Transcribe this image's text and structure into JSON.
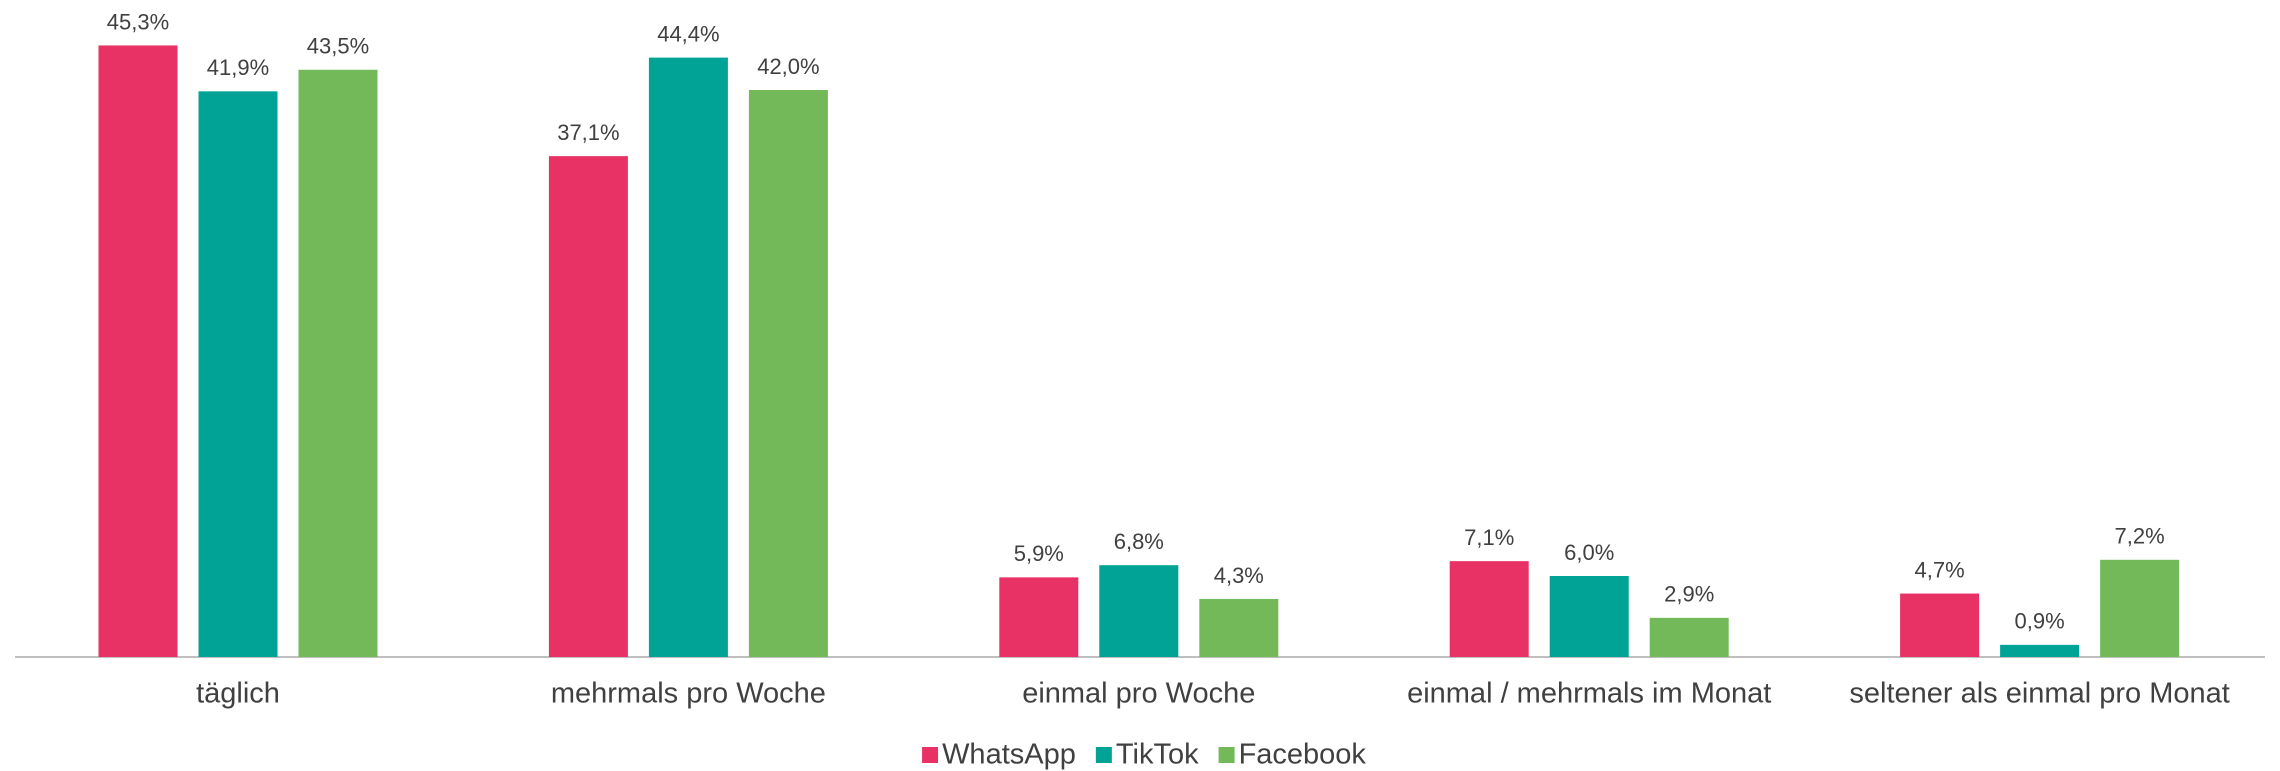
{
  "chart_data": {
    "type": "bar",
    "categories": [
      "täglich",
      "mehrmals pro Woche",
      "einmal pro Woche",
      "einmal / mehrmals im Monat",
      "seltener als einmal pro Monat"
    ],
    "series": [
      {
        "name": "WhatsApp",
        "color": "#e83265",
        "values": [
          45.3,
          37.1,
          5.9,
          7.1,
          4.7
        ],
        "value_labels": [
          "45,3%",
          "37,1%",
          "5,9%",
          "7,1%",
          "4,7%"
        ]
      },
      {
        "name": "TikTok",
        "color": "#00a396",
        "values": [
          41.9,
          44.4,
          6.8,
          6.0,
          0.9
        ],
        "value_labels": [
          "41,9%",
          "44,4%",
          "6,8%",
          "6,0%",
          "0,9%"
        ]
      },
      {
        "name": "Facebook",
        "color": "#74b959",
        "values": [
          43.5,
          42.0,
          4.3,
          2.9,
          7.2
        ],
        "value_labels": [
          "43,5%",
          "42,0%",
          "4,3%",
          "2,9%",
          "7,2%"
        ]
      }
    ],
    "legend": "bottom"
  }
}
